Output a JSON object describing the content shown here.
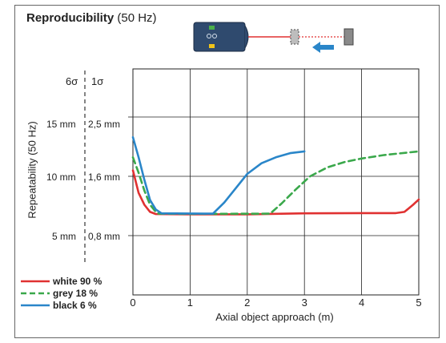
{
  "header": {
    "title_bold": "Reproducibility",
    "title_rest": "(50 Hz)"
  },
  "y_scale_headers": {
    "six_sigma": "6σ",
    "one_sigma": "1σ"
  },
  "y_tick_labels": [
    {
      "six": "15 mm",
      "one": "2,5 mm",
      "value": 15
    },
    {
      "six": "10 mm",
      "one": "1,6 mm",
      "value": 10
    },
    {
      "six": "5 mm",
      "one": "0,8 mm",
      "value": 5
    }
  ],
  "colors": {
    "white": "#e03131",
    "grey": "#3aa84b",
    "black": "#2a86c9",
    "grid": "#222222"
  },
  "icons": {
    "sensor": "sensor-icon",
    "arrow": "arrow-left-icon"
  },
  "chart_data": {
    "type": "line",
    "title": "Reproducibility (50 Hz)",
    "xlabel": "Axial object approach (m)",
    "ylabel": "Repeatability (50 Hz)",
    "xlim": [
      0,
      5
    ],
    "ylim": [
      0,
      20
    ],
    "x_ticks": [
      "0",
      "1",
      "2",
      "3",
      "4",
      "5"
    ],
    "grid": true,
    "legend_position": "bottom-left",
    "series": [
      {
        "name": "white 90 %",
        "color": "#e03131",
        "dash": "solid",
        "points": [
          [
            0,
            10.5
          ],
          [
            0.1,
            8.6
          ],
          [
            0.2,
            7.6
          ],
          [
            0.3,
            7.0
          ],
          [
            0.4,
            6.82
          ],
          [
            1.0,
            6.8
          ],
          [
            2.0,
            6.8
          ],
          [
            3.0,
            6.88
          ],
          [
            4.0,
            6.9
          ],
          [
            4.6,
            6.9
          ],
          [
            4.75,
            7.0
          ],
          [
            4.9,
            7.6
          ],
          [
            5.0,
            8.05
          ]
        ]
      },
      {
        "name": "grey 18 %",
        "color": "#3aa84b",
        "dash": "dashed",
        "points": [
          [
            0,
            11.6
          ],
          [
            0.1,
            10.3
          ],
          [
            0.2,
            8.8
          ],
          [
            0.3,
            7.6
          ],
          [
            0.4,
            7.0
          ],
          [
            0.45,
            6.85
          ],
          [
            1.0,
            6.83
          ],
          [
            2.4,
            6.85
          ],
          [
            2.6,
            7.7
          ],
          [
            2.85,
            8.9
          ],
          [
            3.1,
            10.0
          ],
          [
            3.4,
            10.75
          ],
          [
            3.7,
            11.2
          ],
          [
            4.0,
            11.5
          ],
          [
            4.4,
            11.8
          ],
          [
            4.8,
            12.0
          ],
          [
            5.0,
            12.1
          ]
        ]
      },
      {
        "name": "black 6 %",
        "color": "#2a86c9",
        "dash": "solid",
        "points": [
          [
            0,
            13.3
          ],
          [
            0.1,
            11.6
          ],
          [
            0.2,
            9.7
          ],
          [
            0.3,
            8.0
          ],
          [
            0.4,
            7.2
          ],
          [
            0.5,
            6.88
          ],
          [
            1.4,
            6.85
          ],
          [
            1.6,
            7.8
          ],
          [
            1.8,
            9.0
          ],
          [
            2.0,
            10.2
          ],
          [
            2.25,
            11.1
          ],
          [
            2.5,
            11.6
          ],
          [
            2.75,
            11.95
          ],
          [
            3.0,
            12.1
          ]
        ]
      }
    ]
  }
}
